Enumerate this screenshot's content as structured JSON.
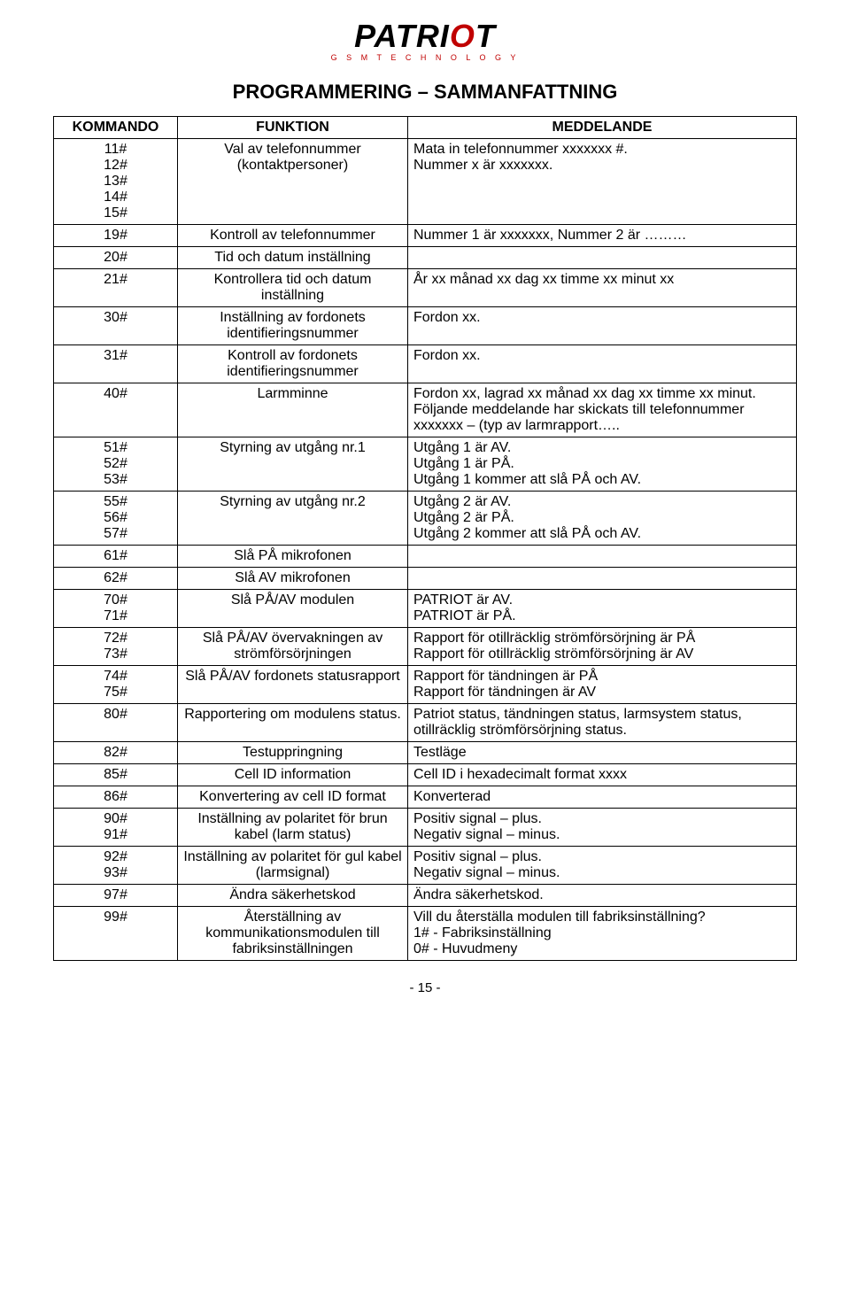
{
  "brand": {
    "name_prefix": "PATRI",
    "name_accent": "O",
    "name_suffix": "T",
    "subtitle": "G S M   T E C H N O L O G Y",
    "accent_color": "#c00000",
    "text_color": "#000000"
  },
  "page": {
    "title": "PROGRAMMERING – SAMMANFATTNING",
    "number": "- 15 -"
  },
  "table": {
    "headers": {
      "command": "KOMMANDO",
      "function": "FUNKTION",
      "message": "MEDDELANDE"
    },
    "rows": [
      {
        "cmd": "11#\n12#\n13#\n14#\n15#",
        "func": "Val av telefonnummer (kontaktpersoner)",
        "msg": "Mata in telefonnummer xxxxxxx #.\nNummer x är xxxxxxx."
      },
      {
        "cmd": "19#",
        "func": "Kontroll av telefonnummer",
        "msg": "Nummer 1 är xxxxxxx, Nummer 2 är ………"
      },
      {
        "cmd": "20#",
        "func": "Tid och datum inställning",
        "msg": ""
      },
      {
        "cmd": "21#",
        "func": "Kontrollera tid och datum inställning",
        "msg": "År xx månad xx dag xx timme xx minut xx"
      },
      {
        "cmd": "30#",
        "func": "Inställning av fordonets identifieringsnummer",
        "msg": "Fordon xx."
      },
      {
        "cmd": "31#",
        "func": "Kontroll av fordonets identifieringsnummer",
        "msg": "Fordon xx."
      },
      {
        "cmd": "40#",
        "func": "Larmminne",
        "msg": "Fordon xx, lagrad xx månad xx dag xx timme xx minut. Följande meddelande har skickats till telefonnummer xxxxxxx – (typ av larmrapport…..",
        "justify": true
      },
      {
        "cmd": "51#\n52#\n53#",
        "func": "Styrning av utgång nr.1",
        "msg": "Utgång 1 är AV.\nUtgång 1 är PÅ.\nUtgång 1 kommer att slå PÅ och AV."
      },
      {
        "cmd": "55#\n56#\n57#",
        "func": "Styrning av utgång nr.2",
        "msg": "Utgång 2 är AV.\nUtgång 2 är PÅ.\nUtgång 2 kommer att slå PÅ och AV."
      },
      {
        "cmd": "61#",
        "func": "Slå PÅ mikrofonen",
        "msg": ""
      },
      {
        "cmd": "62#",
        "func": "Slå AV mikrofonen",
        "msg": ""
      },
      {
        "cmd": "70#\n71#",
        "func": "Slå PÅ/AV modulen",
        "msg": "PATRIOT är AV.\nPATRIOT är PÅ."
      },
      {
        "cmd": "72#\n73#",
        "func": "Slå PÅ/AV övervakningen av strömförsörjningen",
        "msg": "Rapport för otillräcklig strömförsörjning är PÅ\nRapport för otillräcklig strömförsörjning är AV"
      },
      {
        "cmd": "74#\n75#",
        "func": "Slå PÅ/AV fordonets statusrapport",
        "msg": "Rapport för tändningen är PÅ\nRapport för tändningen är AV"
      },
      {
        "cmd": "80#",
        "func": "Rapportering om modulens status.",
        "msg": "Patriot status, tändningen status, larmsystem status, otillräcklig strömförsörjning status."
      },
      {
        "cmd": "82#",
        "func": "Testuppringning",
        "msg": "Testläge"
      },
      {
        "cmd": "85#",
        "func": "Cell ID information",
        "msg": "Cell ID i hexadecimalt format xxxx"
      },
      {
        "cmd": "86#",
        "func": "Konvertering av cell ID format",
        "msg": "Konverterad"
      },
      {
        "cmd": "90#\n91#",
        "func": "Inställning av polaritet för brun kabel (larm status)",
        "msg": "Positiv signal – plus.\nNegativ signal – minus."
      },
      {
        "cmd": "92#\n93#",
        "func": "Inställning av polaritet för gul kabel (larmsignal)",
        "msg": "Positiv signal – plus.\nNegativ signal – minus."
      },
      {
        "cmd": "97#",
        "func": "Ändra säkerhetskod",
        "msg": "Ändra säkerhetskod."
      },
      {
        "cmd": "99#",
        "func": "Återställning av kommunikationsmodulen till fabriksinställningen",
        "msg": "Vill du återställa modulen till fabriksinställning?\n1# - Fabriksinställning\n0# - Huvudmeny",
        "justify_first": true
      }
    ]
  }
}
